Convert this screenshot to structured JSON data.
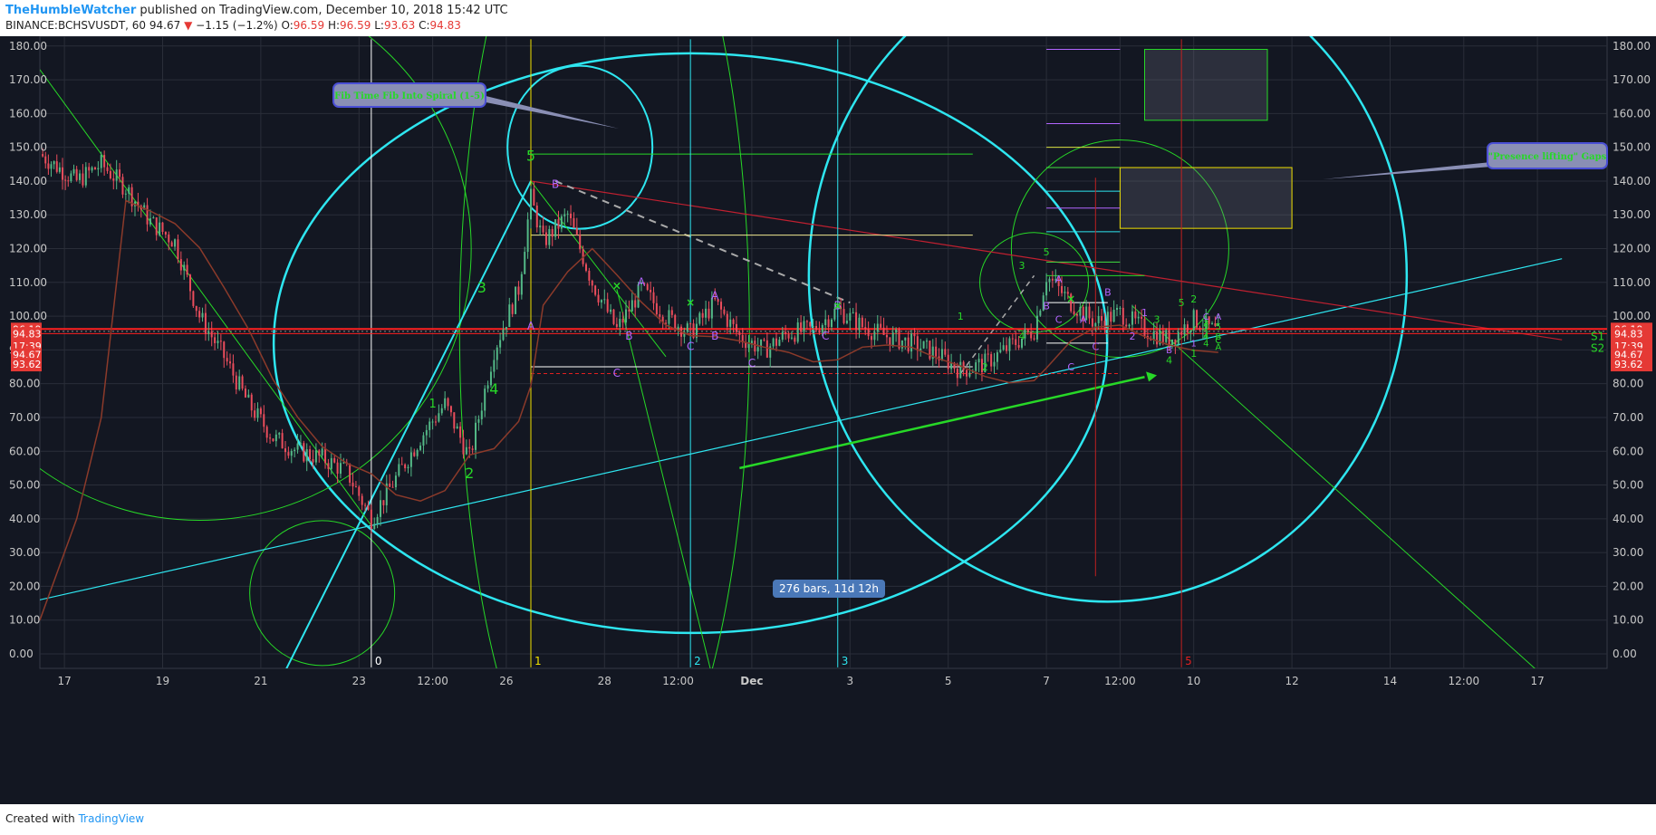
{
  "header": {
    "author": "TheHumbleWatcher",
    "published": "published on TradingView.com, December 10, 2018 15:42 UTC",
    "symbol": "BINANCE:BCHSVUSDT, 60",
    "last": "94.67",
    "change": "−1.15 (−1.2%)",
    "o_label": "O:",
    "o": "96.59",
    "h_label": "H:",
    "h": "96.59",
    "l_label": "L:",
    "l": "93.63",
    "c_label": "C:",
    "c": "94.83"
  },
  "footer": {
    "created": "Created with",
    "brand": "TradingView"
  },
  "colors": {
    "background": "#131722",
    "grid": "#2a2e39",
    "up": "#53b987",
    "down": "#eb4d5c",
    "cyan": "#2ee6f0",
    "green": "#27d827",
    "red_line": "#e02020",
    "yellow": "#f0e000",
    "purple": "#b366ff",
    "white": "#ffffff"
  },
  "chart_data": {
    "type": "candlestick",
    "ylim": [
      -4,
      182
    ],
    "y_ticks": [
      "180.00",
      "170.00",
      "160.00",
      "150.00",
      "140.00",
      "130.00",
      "120.00",
      "110.00",
      "100.00",
      "90.00",
      "80.00",
      "70.00",
      "60.00",
      "50.00",
      "40.00",
      "30.00",
      "20.00",
      "10.00",
      "0.00"
    ],
    "x_ticks": [
      "17",
      "19",
      "21",
      "23",
      "12:00",
      "26",
      "28",
      "12:00",
      "Dec",
      "3",
      "5",
      "7",
      "12:00",
      "10",
      "12",
      "14",
      "12:00",
      "17"
    ],
    "price_badges": [
      "96.19",
      "94.83",
      "17:39",
      "94.67",
      "93.62"
    ],
    "series": [
      {
        "name": "close",
        "values": [
          {
            "d": "2018-11-16 12:00",
            "v": 148
          },
          {
            "d": "2018-11-17 06:00",
            "v": 140
          },
          {
            "d": "2018-11-17 18:00",
            "v": 145
          },
          {
            "d": "2018-11-18 06:00",
            "v": 138
          },
          {
            "d": "2018-11-18 18:00",
            "v": 128
          },
          {
            "d": "2018-11-19 06:00",
            "v": 122
          },
          {
            "d": "2018-11-19 18:00",
            "v": 100
          },
          {
            "d": "2018-11-20 06:00",
            "v": 88
          },
          {
            "d": "2018-11-20 18:00",
            "v": 74
          },
          {
            "d": "2018-11-21 06:00",
            "v": 64
          },
          {
            "d": "2018-11-21 18:00",
            "v": 60
          },
          {
            "d": "2018-11-22 06:00",
            "v": 58
          },
          {
            "d": "2018-11-22 18:00",
            "v": 54
          },
          {
            "d": "2018-11-23 06:00",
            "v": 40
          },
          {
            "d": "2018-11-23 18:00",
            "v": 52
          },
          {
            "d": "2018-11-24 06:00",
            "v": 64
          },
          {
            "d": "2018-11-24 18:00",
            "v": 74
          },
          {
            "d": "2018-11-25 06:00",
            "v": 58
          },
          {
            "d": "2018-11-25 18:00",
            "v": 90
          },
          {
            "d": "2018-11-26 06:00",
            "v": 108
          },
          {
            "d": "2018-11-26 12:00",
            "v": 135
          },
          {
            "d": "2018-11-26 18:00",
            "v": 122
          },
          {
            "d": "2018-11-27 06:00",
            "v": 130
          },
          {
            "d": "2018-11-27 18:00",
            "v": 110
          },
          {
            "d": "2018-11-28 06:00",
            "v": 96
          },
          {
            "d": "2018-11-28 18:00",
            "v": 108
          },
          {
            "d": "2018-11-29 06:00",
            "v": 100
          },
          {
            "d": "2018-11-29 18:00",
            "v": 95
          },
          {
            "d": "2018-11-30 06:00",
            "v": 104
          },
          {
            "d": "2018-11-30 18:00",
            "v": 94
          },
          {
            "d": "2018-12-01 06:00",
            "v": 90
          },
          {
            "d": "2018-12-01 18:00",
            "v": 95
          },
          {
            "d": "2018-12-02 06:00",
            "v": 96
          },
          {
            "d": "2018-12-02 18:00",
            "v": 102
          },
          {
            "d": "2018-12-03 06:00",
            "v": 97
          },
          {
            "d": "2018-12-03 18:00",
            "v": 94
          },
          {
            "d": "2018-12-04 06:00",
            "v": 92
          },
          {
            "d": "2018-12-04 18:00",
            "v": 89
          },
          {
            "d": "2018-12-05 06:00",
            "v": 84
          },
          {
            "d": "2018-12-05 18:00",
            "v": 86
          },
          {
            "d": "2018-12-06 06:00",
            "v": 91
          },
          {
            "d": "2018-12-06 18:00",
            "v": 96
          },
          {
            "d": "2018-12-07 00:00",
            "v": 112
          },
          {
            "d": "2018-12-07 12:00",
            "v": 104
          },
          {
            "d": "2018-12-08 00:00",
            "v": 98
          },
          {
            "d": "2018-12-08 12:00",
            "v": 101
          },
          {
            "d": "2018-12-09 00:00",
            "v": 96
          },
          {
            "d": "2018-12-09 12:00",
            "v": 93
          },
          {
            "d": "2018-12-10 00:00",
            "v": 99
          },
          {
            "d": "2018-12-10 12:00",
            "v": 95
          }
        ]
      }
    ],
    "annotations": {
      "callout_left": "Fib Time Fib Into Spiral (1-5)",
      "callout_right": "\"Presence lifting\" Gaps",
      "bars_label": "276 bars, 11d 12h",
      "pivots": [
        "S1",
        "S2"
      ],
      "time_markers": [
        "0",
        "1",
        "2",
        "3",
        "5"
      ],
      "wave_labels": [
        "5",
        "3",
        "4",
        "2",
        "1",
        "B",
        "A",
        "C",
        "A",
        "B",
        "C",
        "A",
        "B",
        "C",
        "B",
        "C",
        "1",
        "2",
        "3",
        "4",
        "5",
        "A",
        "B",
        "C",
        "A",
        "C",
        "B",
        "C",
        "1",
        "2",
        "3",
        "4",
        "5",
        "1",
        "2",
        "3",
        "4",
        "5",
        "2",
        "4",
        "5",
        "B",
        "A",
        "C",
        "1",
        "B",
        "C",
        "A"
      ]
    }
  }
}
